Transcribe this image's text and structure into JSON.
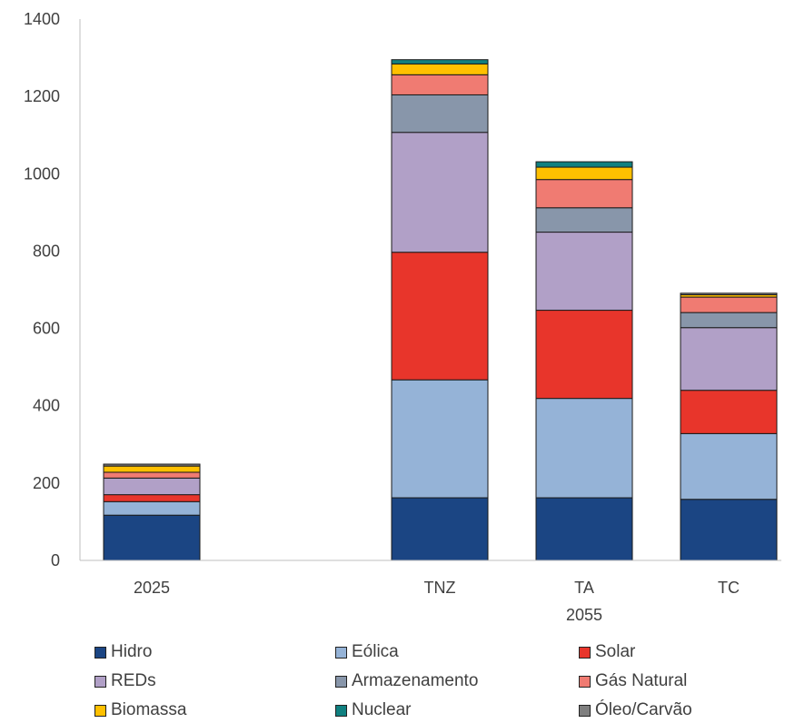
{
  "chart_data": {
    "type": "bar",
    "stacked": true,
    "title": "",
    "xlabel": "",
    "ylabel": "",
    "ylim": [
      0,
      1400
    ],
    "yticks": [
      0,
      200,
      400,
      600,
      800,
      1000,
      1200,
      1400
    ],
    "grid": false,
    "legend_position": "bottom",
    "categories": [
      "2025",
      "TNZ",
      "TA",
      "TC"
    ],
    "group_labels": [
      {
        "label": "2055",
        "categories": [
          "TNZ",
          "TA",
          "TC"
        ]
      }
    ],
    "series": [
      {
        "name": "Hidro",
        "color": "#1b4583",
        "values": [
          117,
          162,
          162,
          158
        ]
      },
      {
        "name": "Eólica",
        "color": "#95b3d7",
        "values": [
          35,
          305,
          257,
          170
        ]
      },
      {
        "name": "Solar",
        "color": "#e8352b",
        "values": [
          18,
          330,
          228,
          112
        ]
      },
      {
        "name": "REDs",
        "color": "#b1a0c7",
        "values": [
          43,
          310,
          202,
          162
        ]
      },
      {
        "name": "Armazenamento",
        "color": "#8896aa",
        "values": [
          0,
          97,
          63,
          39
        ]
      },
      {
        "name": "Gás Natural",
        "color": "#f07b72",
        "values": [
          15,
          52,
          73,
          40
        ]
      },
      {
        "name": "Biomassa",
        "color": "#ffc000",
        "values": [
          16,
          28,
          32,
          6
        ]
      },
      {
        "name": "Nuclear",
        "color": "#108080",
        "values": [
          0,
          11,
          14,
          0
        ]
      },
      {
        "name": "Óleo/Carvão",
        "color": "#7f7f7f",
        "values": [
          5,
          0,
          0,
          4
        ]
      }
    ]
  }
}
